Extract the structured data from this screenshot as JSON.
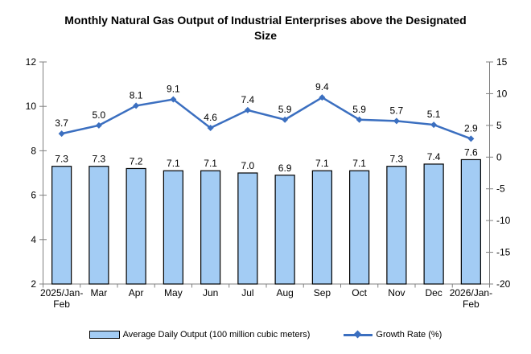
{
  "title": "Monthly Natural Gas Output of Industrial Enterprises above the Designated Size",
  "colors": {
    "bar_fill": "#A3CCF4",
    "bar_border": "#000000",
    "line": "#3B6FC0",
    "axis": "#808080",
    "text": "#000000"
  },
  "chart_data": {
    "type": "bar",
    "title": "Monthly Natural Gas Output of Industrial Enterprises above the Designated Size",
    "categories": [
      "2025/Jan-Feb",
      "Mar",
      "Apr",
      "May",
      "Jun",
      "Jul",
      "Aug",
      "Sep",
      "Oct",
      "Nov",
      "Dec",
      "2026/Jan-Feb"
    ],
    "series": [
      {
        "name": "Average Daily Output (100 million cubic meters)",
        "type": "bar",
        "axis": "left",
        "values": [
          7.3,
          7.3,
          7.2,
          7.1,
          7.1,
          7.0,
          6.9,
          7.1,
          7.1,
          7.3,
          7.4,
          7.6
        ]
      },
      {
        "name": "Growth Rate (%)",
        "type": "line",
        "axis": "right",
        "marker": "diamond",
        "values": [
          3.7,
          5.0,
          8.1,
          9.1,
          4.6,
          7.4,
          5.9,
          9.4,
          5.9,
          5.7,
          5.1,
          2.9
        ]
      }
    ],
    "left_axis": {
      "min": 2,
      "max": 12,
      "step": 2,
      "ticks": [
        12,
        10,
        8,
        6,
        4,
        2
      ]
    },
    "right_axis": {
      "min": -20,
      "max": 15,
      "step": 5,
      "ticks": [
        15,
        10,
        5,
        0,
        -5,
        -10,
        -15,
        -20
      ]
    },
    "grid": false,
    "legend_position": "bottom",
    "data_labels": true
  }
}
